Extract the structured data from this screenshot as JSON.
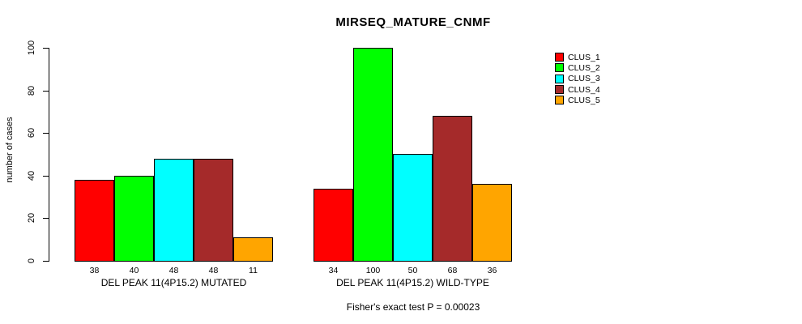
{
  "chart_data": {
    "type": "bar",
    "title": "MIRSEQ_MATURE_CNMF",
    "ylabel": "number of cases",
    "xlabel": "",
    "ylim": [
      0,
      100
    ],
    "yticks": [
      0,
      20,
      40,
      60,
      80,
      100
    ],
    "grid": false,
    "legend_position": "top-right",
    "series": [
      {
        "name": "CLUS_1",
        "color": "#FF0000"
      },
      {
        "name": "CLUS_2",
        "color": "#00FF00"
      },
      {
        "name": "CLUS_3",
        "color": "#00FFFF"
      },
      {
        "name": "CLUS_4",
        "color": "#A52A2A"
      },
      {
        "name": "CLUS_5",
        "color": "#FFA500"
      }
    ],
    "groups": [
      {
        "label": "DEL PEAK 11(4P15.2) MUTATED",
        "values": [
          38,
          40,
          48,
          48,
          11
        ]
      },
      {
        "label": "DEL PEAK 11(4P15.2) WILD-TYPE",
        "values": [
          34,
          100,
          50,
          68,
          36
        ]
      }
    ],
    "bar_value_labels_shown": true,
    "footer": "Fisher's exact test P = 0.00023",
    "axis_color": "#000000",
    "background_color": "#FFFFFF"
  }
}
